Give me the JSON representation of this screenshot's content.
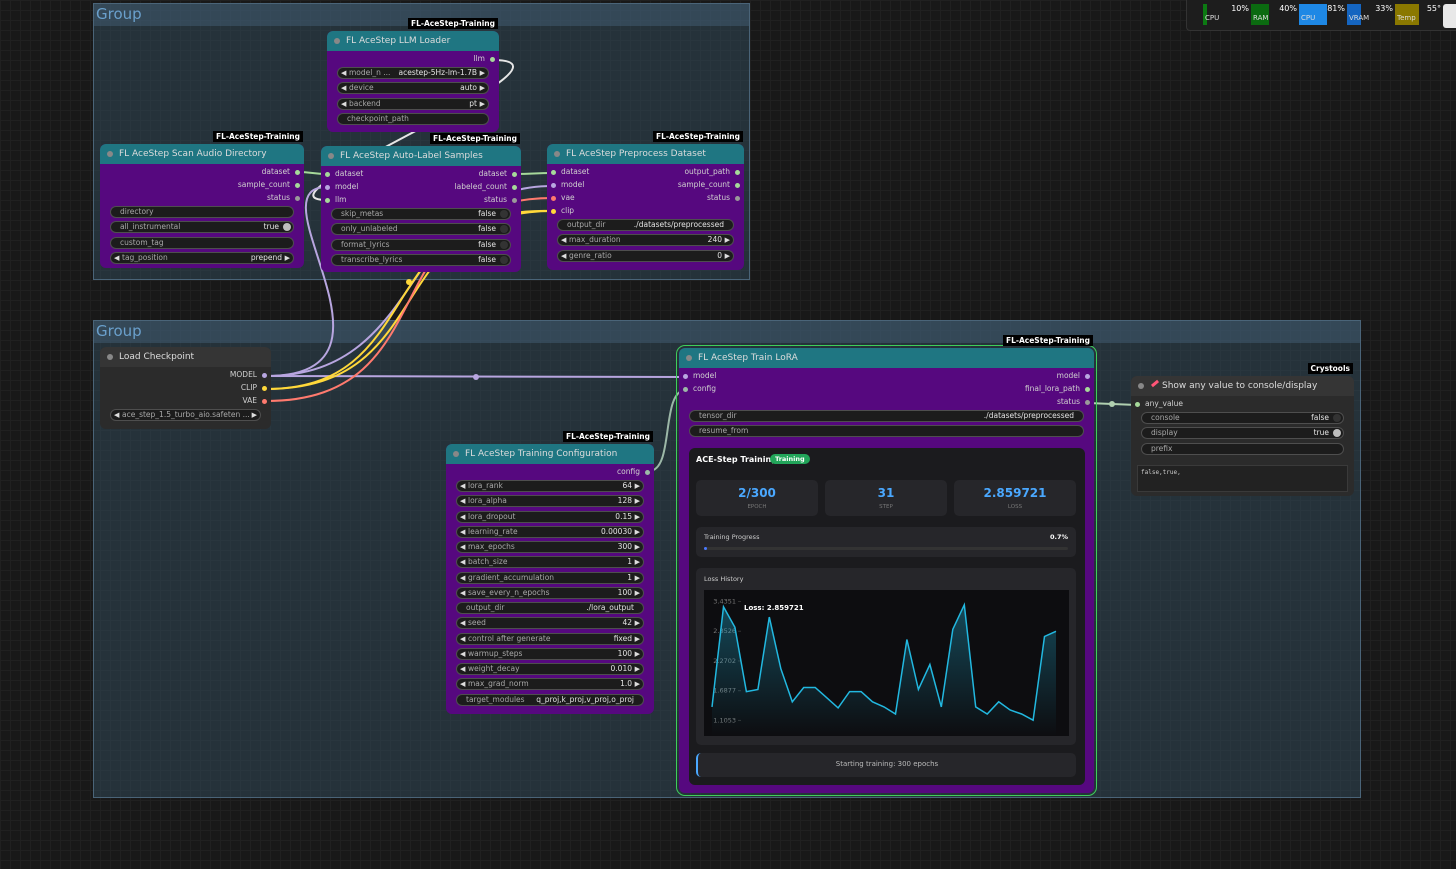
{
  "system_monitor": [
    {
      "label": "CPU",
      "value": "10%"
    },
    {
      "label": "RAM",
      "value": "40%"
    },
    {
      "label": "CPU",
      "value": "81%"
    },
    {
      "label": "VRAM",
      "value": "33%"
    },
    {
      "label": "Temp",
      "value": "55°"
    }
  ],
  "groups": [
    {
      "title": "Group"
    },
    {
      "title": "Group"
    }
  ],
  "nodes": [
    {
      "title": "FL AceStep LLM Loader",
      "badge": "FL-AceStep-Training",
      "inputs": [],
      "outputs": [
        "llm"
      ],
      "widgets": [
        {
          "name": "model_n ...",
          "value": "acestep-5Hz-lm-1.7B"
        },
        {
          "name": "device",
          "value": "auto"
        },
        {
          "name": "backend",
          "value": "pt"
        },
        {
          "name": "checkpoint_path"
        }
      ]
    },
    {
      "title": "FL AceStep Scan Audio Directory",
      "badge": "FL-AceStep-Training",
      "inputs": [],
      "outputs": [
        "dataset",
        "sample_count",
        "status"
      ],
      "widgets": [
        {
          "name": "directory"
        },
        {
          "name": "all_instrumental",
          "value": true
        },
        {
          "name": "custom_tag"
        },
        {
          "name": "tag_position",
          "value": "prepend"
        }
      ]
    },
    {
      "title": "FL AceStep Auto-Label Samples",
      "badge": "FL-AceStep-Training",
      "inputs": [
        "dataset",
        "model",
        "llm"
      ],
      "outputs": [
        "dataset",
        "labeled_count",
        "status"
      ],
      "widgets": [
        {
          "name": "skip_metas",
          "value": false
        },
        {
          "name": "only_unlabeled",
          "value": false
        },
        {
          "name": "format_lyrics",
          "value": false
        },
        {
          "name": "transcribe_lyrics",
          "value": false
        }
      ]
    },
    {
      "title": "FL AceStep Preprocess Dataset",
      "badge": "FL-AceStep-Training",
      "inputs": [
        "dataset",
        "model",
        "vae",
        "clip"
      ],
      "outputs": [
        "output_path",
        "sample_count",
        "status"
      ],
      "widgets": [
        {
          "name": "output_dir",
          "value": "./datasets/preprocessed"
        },
        {
          "name": "max_duration",
          "value": 240
        },
        {
          "name": "genre_ratio",
          "value": 0
        }
      ]
    },
    {
      "title": "Load Checkpoint",
      "inputs": [],
      "outputs": [
        "MODEL",
        "CLIP",
        "VAE"
      ],
      "widgets": [
        {
          "name": "ace_step_1.5_turbo_aio.safeten ..."
        }
      ]
    },
    {
      "title": "FL AceStep Training Configuration",
      "badge": "FL-AceStep-Training",
      "inputs": [],
      "outputs": [
        "config"
      ],
      "widgets": [
        {
          "name": "lora_rank",
          "value": 64
        },
        {
          "name": "lora_alpha",
          "value": 128
        },
        {
          "name": "lora_dropout",
          "value": 0.15
        },
        {
          "name": "learning_rate",
          "value": "0.00030"
        },
        {
          "name": "max_epochs",
          "value": 300
        },
        {
          "name": "batch_size",
          "value": 1
        },
        {
          "name": "gradient_accumulation",
          "value": 1
        },
        {
          "name": "save_every_n_epochs",
          "value": 100
        },
        {
          "name": "output_dir",
          "value": "./lora_output"
        },
        {
          "name": "seed",
          "value": 42
        },
        {
          "name": "control after generate",
          "value": "fixed"
        },
        {
          "name": "warmup_steps",
          "value": 100
        },
        {
          "name": "weight_decay",
          "value": "0.010"
        },
        {
          "name": "max_grad_norm",
          "value": "1.0"
        },
        {
          "name": "target_modules",
          "value": "q_proj,k_proj,v_proj,o_proj"
        }
      ]
    },
    {
      "title": "FL AceStep Train LoRA",
      "badge": "FL-AceStep-Training",
      "inputs": [
        "model",
        "config"
      ],
      "outputs": [
        "model",
        "final_lora_path",
        "status"
      ],
      "widgets": [
        {
          "name": "tensor_dir",
          "value": "./datasets/preprocessed"
        },
        {
          "name": "resume_from"
        }
      ]
    },
    {
      "title": "Show any value to console/display",
      "badge": "Crystools",
      "inputs": [
        "any_value"
      ],
      "outputs": [],
      "widgets": [
        {
          "name": "console",
          "value": false
        },
        {
          "name": "display",
          "value": true
        },
        {
          "name": "prefix"
        }
      ],
      "display_text": "false,true,"
    }
  ],
  "train_panel": {
    "title": "ACE-Step Training",
    "status_badge": "Training",
    "stats": [
      {
        "value": "2/300",
        "label": "EPOCH"
      },
      {
        "value": 31,
        "label": "STEP"
      },
      {
        "value": 2.859721,
        "label": "LOSS"
      }
    ],
    "progress_title": "Training Progress",
    "progress": {
      "value": 0.7,
      "label": "0.7%"
    },
    "message": "Starting training: 300 epochs"
  },
  "chart_data": {
    "type": "line",
    "title": "Loss History",
    "annotation": "Loss: 2.859721",
    "color": "#22b8e0",
    "values": [
      1.37,
      3.33,
      2.93,
      1.67,
      1.71,
      3.13,
      2.12,
      1.47,
      1.75,
      1.75,
      1.55,
      1.35,
      1.67,
      1.67,
      1.47,
      1.37,
      1.23,
      2.69,
      1.71,
      2.2,
      1.37,
      2.89,
      3.37,
      1.37,
      1.23,
      1.47,
      1.31,
      1.23,
      1.11,
      2.75,
      2.85
    ],
    "ylim": [
      0.8,
      3.66
    ],
    "yticks": [
      1.1053,
      1.6877,
      2.2702,
      2.8526,
      3.4351
    ]
  }
}
